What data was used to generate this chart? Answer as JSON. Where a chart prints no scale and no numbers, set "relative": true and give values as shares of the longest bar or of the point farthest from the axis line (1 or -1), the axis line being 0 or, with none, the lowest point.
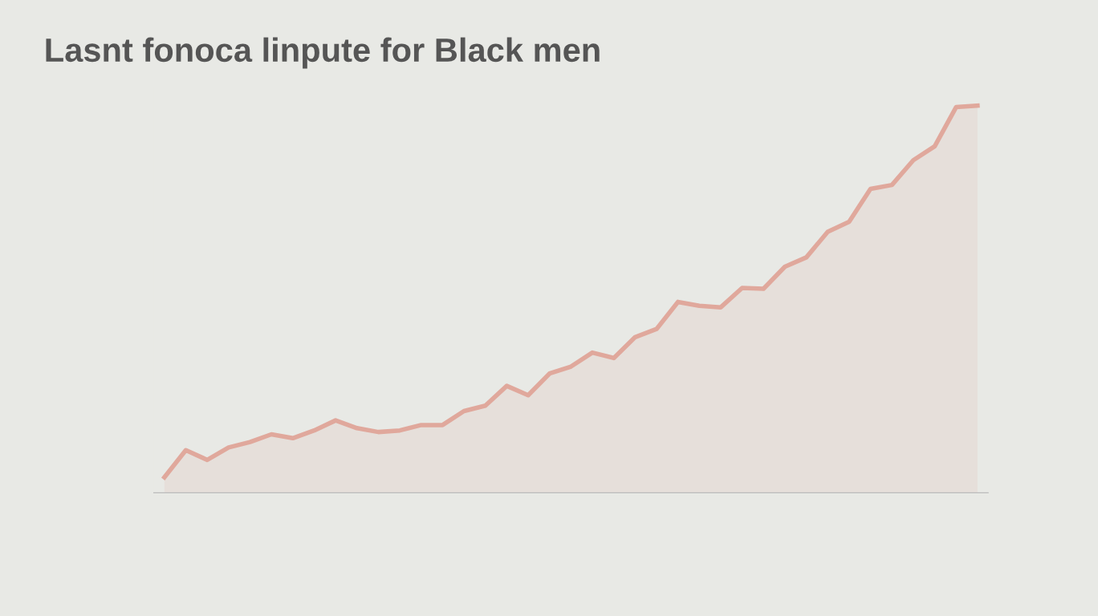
{
  "chart_data": {
    "type": "area",
    "title": "Lasnt fonoca linpute for Black men",
    "relative": true,
    "categories": [
      null,
      null,
      null,
      null,
      null,
      null,
      null,
      null,
      null,
      null,
      null,
      null,
      null,
      null,
      null,
      null,
      null,
      null,
      null,
      null,
      null,
      null,
      null,
      null,
      null,
      null,
      null,
      null,
      null,
      null,
      null,
      null,
      null,
      null,
      null,
      null,
      null,
      null,
      null
    ],
    "series": [
      {
        "color": "#e0a89c",
        "values": [
          0.04,
          0.11,
          0.085,
          0.117,
          0.131,
          0.151,
          0.141,
          0.161,
          0.187,
          0.167,
          0.157,
          0.161,
          0.175,
          0.175,
          0.211,
          0.225,
          0.276,
          0.252,
          0.308,
          0.326,
          0.362,
          0.348,
          0.402,
          0.423,
          0.493,
          0.483,
          0.479,
          0.529,
          0.527,
          0.584,
          0.608,
          0.674,
          0.7,
          0.785,
          0.795,
          0.859,
          0.895,
          0.996,
          1
        ]
      }
    ],
    "grid": false,
    "legend": false
  }
}
